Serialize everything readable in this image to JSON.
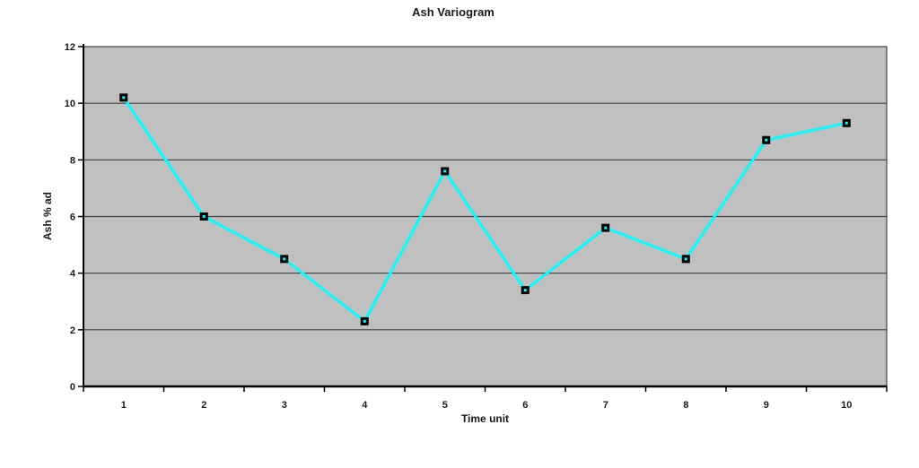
{
  "chart_data": {
    "type": "line",
    "title": "Ash Variogram",
    "xlabel": "Time unit",
    "ylabel": "Ash % ad",
    "categories": [
      "1",
      "2",
      "3",
      "4",
      "5",
      "6",
      "7",
      "8",
      "9",
      "10"
    ],
    "series": [
      {
        "name": "Ash % ad",
        "values": [
          10.2,
          6,
          4.5,
          2.3,
          7.6,
          3.4,
          5.6,
          4.5,
          8.7,
          9.3
        ]
      }
    ],
    "ylim": [
      0,
      12
    ],
    "yticks": [
      0,
      2,
      4,
      6,
      8,
      10,
      12
    ],
    "grid": "horizontal-major",
    "legend_position": "none",
    "colors": {
      "page_background": "#ffffff",
      "plot_background": "#c0c0c0",
      "gridline": "#404040",
      "axis": "#000000",
      "line": "#00ffff",
      "marker_border": "#000000",
      "marker_center": "#00ffff",
      "text": "#1a1a1a"
    }
  }
}
